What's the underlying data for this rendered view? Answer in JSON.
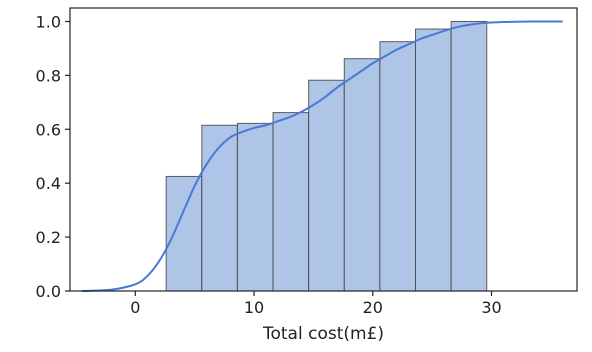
{
  "chart_data": {
    "type": "bar",
    "title": "",
    "xlabel": "Total cost(m£)",
    "ylabel": "",
    "xlim": [
      -5.5,
      37.2
    ],
    "ylim": [
      0,
      1.05
    ],
    "xticks": [
      0,
      10,
      20,
      30
    ],
    "yticks": [
      0.0,
      0.2,
      0.4,
      0.6,
      0.8,
      1.0
    ],
    "xtick_labels": [
      "0",
      "10",
      "20",
      "30"
    ],
    "ytick_labels": [
      "0.0",
      "0.2",
      "0.4",
      "0.6",
      "0.8",
      "1.0"
    ],
    "grid": false,
    "histogram": {
      "bin_edges": [
        2.6,
        5.6,
        8.6,
        11.6,
        14.6,
        17.6,
        20.6,
        23.6,
        26.6,
        29.6
      ],
      "values": [
        0.425,
        0.615,
        0.622,
        0.662,
        0.782,
        0.862,
        0.925,
        0.972,
        1.0
      ],
      "color": "#aec5e8",
      "edge_color": "#444444"
    },
    "curve": {
      "type": "line",
      "color": "#4a78d6",
      "x": [
        -4.5,
        -2,
        0,
        1,
        2,
        3,
        4,
        5,
        6,
        7,
        8,
        9,
        10,
        11,
        12,
        13,
        14,
        15,
        16,
        17,
        18,
        19,
        20,
        21,
        22,
        23,
        24,
        25,
        26,
        27,
        28,
        29,
        30,
        31,
        32,
        34,
        36
      ],
      "y": [
        0.0,
        0.005,
        0.025,
        0.055,
        0.11,
        0.19,
        0.29,
        0.39,
        0.47,
        0.53,
        0.57,
        0.59,
        0.605,
        0.615,
        0.63,
        0.645,
        0.665,
        0.69,
        0.72,
        0.755,
        0.785,
        0.815,
        0.845,
        0.87,
        0.895,
        0.915,
        0.935,
        0.95,
        0.965,
        0.978,
        0.987,
        0.993,
        0.996,
        0.998,
        0.999,
        1.0,
        1.0
      ]
    }
  }
}
